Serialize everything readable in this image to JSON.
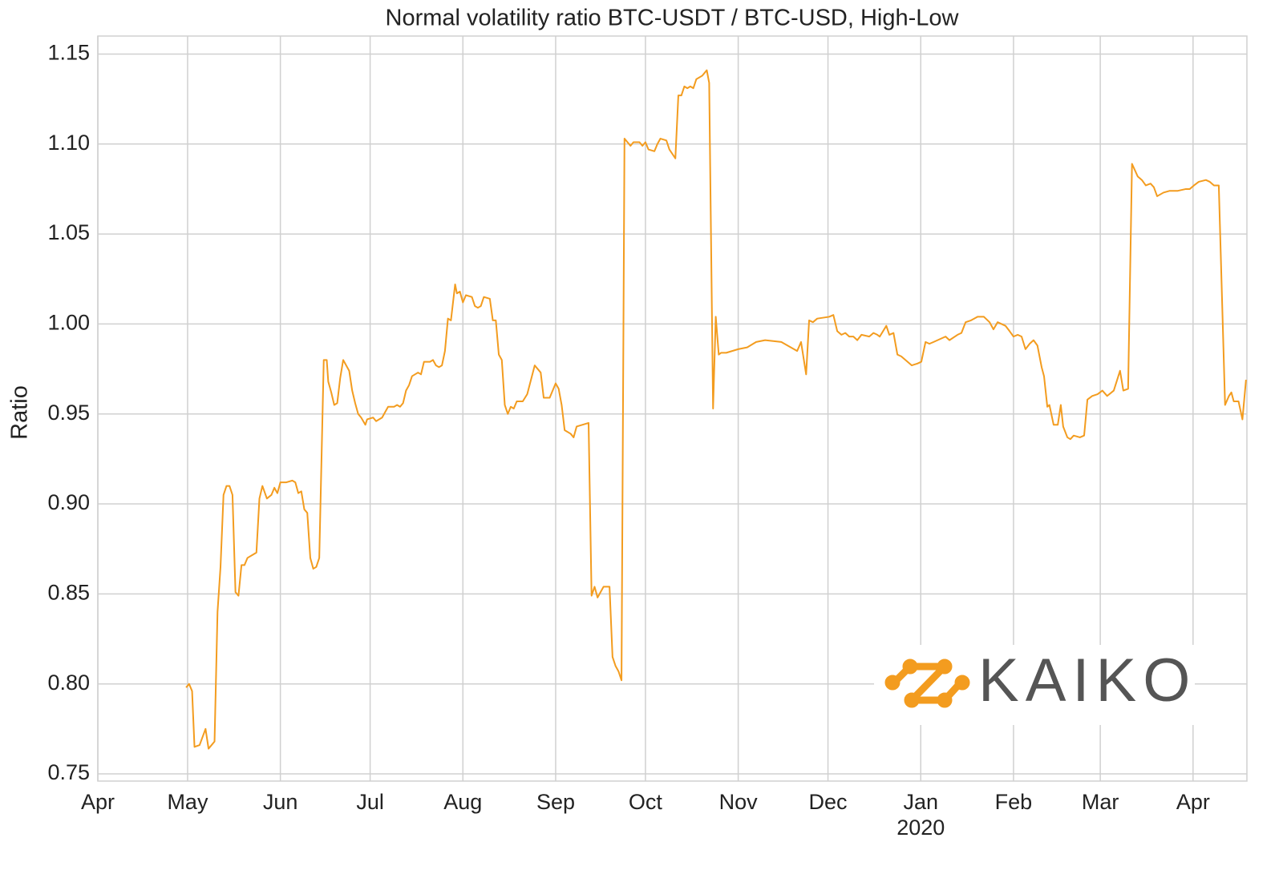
{
  "chart_data": {
    "type": "line",
    "title": "Normal volatility ratio BTC-USDT / BTC-USD, High-Low",
    "ylabel": "Ratio",
    "x_year_label": "2020",
    "watermark": "KAIKO",
    "grid": true,
    "xlim": [
      0,
      384
    ],
    "ylim": [
      0.746,
      1.16
    ],
    "xticks": [
      {
        "value": 0,
        "label": "Apr"
      },
      {
        "value": 30,
        "label": "May"
      },
      {
        "value": 61,
        "label": "Jun"
      },
      {
        "value": 91,
        "label": "Jul"
      },
      {
        "value": 122,
        "label": "Aug"
      },
      {
        "value": 153,
        "label": "Sep"
      },
      {
        "value": 183,
        "label": "Oct"
      },
      {
        "value": 214,
        "label": "Nov"
      },
      {
        "value": 244,
        "label": "Dec"
      },
      {
        "value": 275,
        "label": "Jan"
      },
      {
        "value": 306,
        "label": "Feb"
      },
      {
        "value": 335,
        "label": "Mar"
      },
      {
        "value": 366,
        "label": "Apr"
      }
    ],
    "yticks": [
      0.75,
      {
        "value": 0.8,
        "label": "0.80"
      },
      0.85,
      {
        "value": 0.9,
        "label": "0.90"
      },
      0.95,
      {
        "value": 1.0,
        "label": "1.00"
      },
      1.05,
      {
        "value": 1.1,
        "label": "1.10"
      },
      1.15
    ],
    "series": [
      {
        "name": "BTC-USDT / BTC-USD",
        "color": "#f39c1f",
        "x": [
          29.5,
          30.5,
          31.5,
          32.3,
          34,
          36,
          37,
          39,
          40,
          41,
          42,
          43,
          44,
          45,
          46,
          47,
          48,
          49,
          50,
          52,
          53,
          54,
          55,
          56.5,
          58,
          59,
          60,
          61,
          63,
          65,
          66,
          67,
          68,
          69,
          70,
          71,
          72,
          73,
          74,
          75.5,
          76.5,
          77,
          78,
          79,
          80,
          81,
          82,
          83,
          84,
          85,
          86,
          87,
          88,
          89.4,
          90,
          92,
          93,
          95,
          96,
          97,
          99,
          100,
          101,
          102,
          103,
          104,
          105,
          107,
          108,
          109,
          111,
          112,
          113,
          114,
          115,
          116,
          117,
          118,
          119.4,
          120,
          121,
          122,
          123,
          125,
          126,
          127,
          128,
          129,
          131,
          132,
          133,
          134,
          135,
          136,
          137,
          138,
          139,
          140,
          142,
          143.5,
          146,
          148,
          149,
          151,
          152,
          153,
          154,
          155,
          156,
          158,
          159,
          160,
          162,
          164,
          165,
          166,
          167,
          169,
          171,
          172,
          173,
          174,
          175,
          176,
          178,
          179,
          181,
          182,
          183,
          184,
          186,
          187,
          188,
          190,
          191,
          193,
          194,
          195,
          196,
          197,
          198,
          199,
          200,
          202,
          203.5,
          204.3,
          205.6,
          206.5,
          207.5,
          208.3,
          210,
          214,
          217,
          220,
          223,
          228.4,
          233.7,
          235,
          236.7,
          237.7,
          239,
          240.4,
          244.4,
          245.8,
          247.1,
          248.5,
          249.8,
          251.1,
          252.5,
          253.8,
          255.2,
          257.8,
          259.2,
          260.5,
          261.3,
          263.5,
          264.5,
          265.9,
          267.2,
          268.5,
          269.9,
          272,
          273.9,
          275.2,
          276.6,
          277.9,
          279.3,
          283.3,
          284.6,
          287.3,
          288.6,
          290,
          291.8,
          294,
          296.1,
          298,
          299.3,
          300.7,
          303.3,
          304.7,
          306,
          307.4,
          308.7,
          310,
          311.4,
          312.7,
          314,
          315.4,
          316.2,
          317.3,
          318,
          319.4,
          320.8,
          321.8,
          322.6,
          324,
          325,
          326.1,
          328.2,
          329.6,
          330.7,
          332.3,
          334.1,
          335.7,
          337.3,
          339.5,
          341.6,
          342.7,
          344.3,
          345.6,
          347.5,
          348.9,
          350.2,
          351.8,
          352.9,
          354,
          356.1,
          358.2,
          360.9,
          363.6,
          364.9,
          366.3,
          367.9,
          370.3,
          371.6,
          373,
          374.6,
          376.7,
          378,
          378.8,
          379.6,
          381.2,
          382.5,
          383.7
        ],
        "values": [
          0.798,
          0.8,
          0.796,
          0.765,
          0.766,
          0.775,
          0.764,
          0.768,
          0.84,
          0.865,
          0.905,
          0.91,
          0.91,
          0.905,
          0.851,
          0.849,
          0.866,
          0.866,
          0.87,
          0.872,
          0.873,
          0.903,
          0.91,
          0.903,
          0.905,
          0.909,
          0.906,
          0.912,
          0.912,
          0.913,
          0.912,
          0.906,
          0.907,
          0.897,
          0.895,
          0.87,
          0.864,
          0.865,
          0.87,
          0.98,
          0.98,
          0.968,
          0.962,
          0.955,
          0.956,
          0.97,
          0.98,
          0.977,
          0.974,
          0.963,
          0.956,
          0.95,
          0.948,
          0.944,
          0.947,
          0.948,
          0.946,
          0.948,
          0.951,
          0.954,
          0.954,
          0.955,
          0.954,
          0.956,
          0.963,
          0.966,
          0.971,
          0.973,
          0.972,
          0.979,
          0.979,
          0.98,
          0.977,
          0.976,
          0.977,
          0.985,
          1.003,
          1.002,
          1.022,
          1.017,
          1.018,
          1.012,
          1.016,
          1.015,
          1.01,
          1.009,
          1.01,
          1.015,
          1.014,
          1.002,
          1.002,
          0.983,
          0.98,
          0.955,
          0.95,
          0.954,
          0.953,
          0.957,
          0.957,
          0.961,
          0.977,
          0.973,
          0.959,
          0.959,
          0.963,
          0.967,
          0.964,
          0.955,
          0.941,
          0.939,
          0.937,
          0.943,
          0.944,
          0.945,
          0.849,
          0.854,
          0.848,
          0.854,
          0.854,
          0.815,
          0.81,
          0.807,
          0.802,
          1.103,
          1.099,
          1.101,
          1.101,
          1.099,
          1.101,
          1.097,
          1.096,
          1.1,
          1.103,
          1.102,
          1.097,
          1.092,
          1.127,
          1.127,
          1.132,
          1.131,
          1.132,
          1.131,
          1.136,
          1.138,
          1.141,
          1.134,
          0.953,
          1.004,
          0.983,
          0.984,
          0.984,
          0.986,
          0.987,
          0.99,
          0.991,
          0.99,
          0.985,
          0.99,
          0.972,
          1.002,
          1.001,
          1.003,
          1.004,
          1.005,
          0.996,
          0.994,
          0.995,
          0.993,
          0.993,
          0.991,
          0.994,
          0.993,
          0.995,
          0.994,
          0.993,
          0.999,
          0.994,
          0.995,
          0.983,
          0.982,
          0.98,
          0.977,
          0.978,
          0.979,
          0.99,
          0.989,
          0.99,
          0.993,
          0.991,
          0.994,
          0.995,
          1.001,
          1.002,
          1.004,
          1.004,
          1.001,
          0.997,
          1.001,
          0.999,
          0.996,
          0.993,
          0.994,
          0.993,
          0.986,
          0.989,
          0.991,
          0.988,
          0.976,
          0.971,
          0.954,
          0.955,
          0.944,
          0.944,
          0.955,
          0.943,
          0.937,
          0.936,
          0.938,
          0.937,
          0.938,
          0.958,
          0.96,
          0.961,
          0.963,
          0.96,
          0.963,
          0.974,
          0.963,
          0.964,
          1.089,
          1.082,
          1.08,
          1.077,
          1.078,
          1.076,
          1.071,
          1.073,
          1.074,
          1.074,
          1.075,
          1.075,
          1.077,
          1.079,
          1.08,
          1.079,
          1.077,
          1.077,
          0.955,
          0.96,
          0.962,
          0.957,
          0.957,
          0.947,
          0.969
        ]
      }
    ]
  }
}
